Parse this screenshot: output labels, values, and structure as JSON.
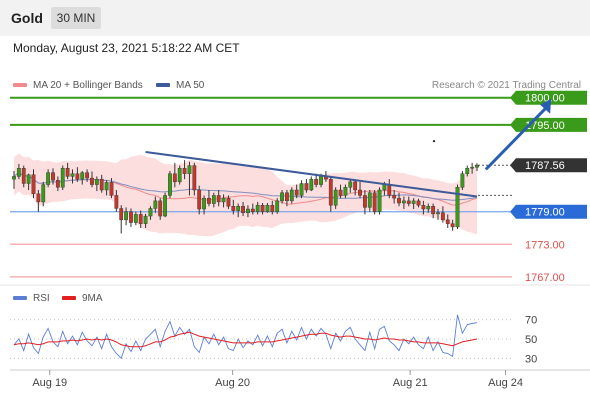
{
  "header": {
    "symbol": "Gold",
    "timeframe": "30 MIN",
    "datetime": "Monday, August 23, 2021 5:18:22 AM CET"
  },
  "legend": {
    "bollinger": {
      "label": "MA 20 + Bollinger Bands",
      "color": "#f28b8b"
    },
    "ma50": {
      "label": "MA 50",
      "color": "#3d5a99"
    },
    "rsi": {
      "label": "RSI",
      "color": "#5b7fd6"
    },
    "rsi_ma": {
      "label": "9MA",
      "color": "#e02020"
    }
  },
  "credit": "Research © 2021 Trading Central",
  "price_levels": [
    {
      "value": 1800.0,
      "label": "1800.00",
      "color": "#3a9a1a",
      "style": "resistance"
    },
    {
      "value": 1795.0,
      "label": "1795.00",
      "color": "#3a9a1a",
      "style": "resistance"
    },
    {
      "value": 1787.56,
      "label": "1787.56",
      "color": "#333333",
      "style": "current"
    },
    {
      "value": 1779.0,
      "label": "1779.00",
      "color": "#2a6bd8",
      "style": "pivot"
    },
    {
      "value": 1773.0,
      "label": "1773.00",
      "color": "#e05050",
      "style": "support"
    },
    {
      "value": 1767.0,
      "label": "1767.00",
      "color": "#e05050",
      "style": "support"
    }
  ],
  "chart_data": [
    {
      "type": "candlestick",
      "ylim": [
        1765.5,
        1800.5
      ],
      "x_ticks": [
        "Aug 19",
        "Aug 20",
        "Aug 21",
        "Aug 24"
      ],
      "candle_count": 96,
      "candles": [
        {
          "o": 1785.0,
          "h": 1786.5,
          "l": 1783.2,
          "c": 1785.5
        },
        {
          "o": 1785.5,
          "h": 1787.8,
          "l": 1785.0,
          "c": 1787.0
        },
        {
          "o": 1787.0,
          "h": 1787.5,
          "l": 1783.5,
          "c": 1784.2
        },
        {
          "o": 1784.2,
          "h": 1786.0,
          "l": 1783.0,
          "c": 1785.8
        },
        {
          "o": 1785.8,
          "h": 1786.8,
          "l": 1781.5,
          "c": 1782.3
        },
        {
          "o": 1782.3,
          "h": 1783.0,
          "l": 1779.0,
          "c": 1780.8
        },
        {
          "o": 1780.8,
          "h": 1784.5,
          "l": 1780.0,
          "c": 1784.0
        },
        {
          "o": 1784.0,
          "h": 1786.8,
          "l": 1783.5,
          "c": 1786.2
        },
        {
          "o": 1786.2,
          "h": 1787.0,
          "l": 1784.0,
          "c": 1784.8
        },
        {
          "o": 1784.8,
          "h": 1785.5,
          "l": 1782.8,
          "c": 1783.5
        },
        {
          "o": 1783.5,
          "h": 1787.5,
          "l": 1783.0,
          "c": 1787.0
        },
        {
          "o": 1787.0,
          "h": 1788.0,
          "l": 1785.0,
          "c": 1785.5
        },
        {
          "o": 1785.5,
          "h": 1786.8,
          "l": 1784.2,
          "c": 1786.0
        },
        {
          "o": 1786.0,
          "h": 1787.2,
          "l": 1784.5,
          "c": 1785.0
        },
        {
          "o": 1785.0,
          "h": 1786.5,
          "l": 1784.0,
          "c": 1786.2
        },
        {
          "o": 1786.2,
          "h": 1786.8,
          "l": 1784.5,
          "c": 1785.2
        },
        {
          "o": 1785.2,
          "h": 1786.4,
          "l": 1783.5,
          "c": 1784.0
        },
        {
          "o": 1784.0,
          "h": 1785.5,
          "l": 1782.8,
          "c": 1785.0
        },
        {
          "o": 1785.0,
          "h": 1785.8,
          "l": 1782.5,
          "c": 1783.0
        },
        {
          "o": 1783.0,
          "h": 1784.8,
          "l": 1782.0,
          "c": 1784.4
        },
        {
          "o": 1784.4,
          "h": 1785.2,
          "l": 1781.5,
          "c": 1782.0
        },
        {
          "o": 1782.0,
          "h": 1783.0,
          "l": 1779.0,
          "c": 1779.6
        },
        {
          "o": 1779.6,
          "h": 1780.2,
          "l": 1775.0,
          "c": 1777.5
        },
        {
          "o": 1777.5,
          "h": 1779.8,
          "l": 1776.5,
          "c": 1779.0
        },
        {
          "o": 1779.0,
          "h": 1779.6,
          "l": 1776.2,
          "c": 1777.0
        },
        {
          "o": 1777.0,
          "h": 1779.0,
          "l": 1776.5,
          "c": 1778.5
        },
        {
          "o": 1778.5,
          "h": 1779.2,
          "l": 1776.0,
          "c": 1776.8
        },
        {
          "o": 1776.8,
          "h": 1778.6,
          "l": 1776.0,
          "c": 1778.2
        },
        {
          "o": 1778.2,
          "h": 1780.0,
          "l": 1777.5,
          "c": 1779.6
        },
        {
          "o": 1779.6,
          "h": 1781.8,
          "l": 1778.8,
          "c": 1781.0
        },
        {
          "o": 1781.0,
          "h": 1781.5,
          "l": 1777.5,
          "c": 1778.2
        },
        {
          "o": 1778.2,
          "h": 1782.5,
          "l": 1778.0,
          "c": 1782.0
        },
        {
          "o": 1782.0,
          "h": 1786.5,
          "l": 1781.5,
          "c": 1786.0
        },
        {
          "o": 1786.0,
          "h": 1788.0,
          "l": 1783.5,
          "c": 1784.5
        },
        {
          "o": 1784.5,
          "h": 1787.5,
          "l": 1784.0,
          "c": 1787.0
        },
        {
          "o": 1787.0,
          "h": 1788.5,
          "l": 1785.0,
          "c": 1786.0
        },
        {
          "o": 1786.0,
          "h": 1788.2,
          "l": 1782.0,
          "c": 1787.5
        },
        {
          "o": 1787.5,
          "h": 1788.0,
          "l": 1782.0,
          "c": 1783.0
        },
        {
          "o": 1783.0,
          "h": 1783.8,
          "l": 1778.5,
          "c": 1779.5
        },
        {
          "o": 1779.5,
          "h": 1782.0,
          "l": 1778.5,
          "c": 1781.5
        },
        {
          "o": 1781.5,
          "h": 1783.0,
          "l": 1780.0,
          "c": 1780.5
        },
        {
          "o": 1780.5,
          "h": 1782.5,
          "l": 1779.8,
          "c": 1782.0
        },
        {
          "o": 1782.0,
          "h": 1783.0,
          "l": 1780.0,
          "c": 1780.8
        },
        {
          "o": 1780.8,
          "h": 1782.2,
          "l": 1779.8,
          "c": 1781.5
        },
        {
          "o": 1781.5,
          "h": 1782.0,
          "l": 1779.5,
          "c": 1780.0
        },
        {
          "o": 1780.0,
          "h": 1781.2,
          "l": 1778.5,
          "c": 1779.2
        },
        {
          "o": 1779.2,
          "h": 1780.5,
          "l": 1778.0,
          "c": 1780.0
        },
        {
          "o": 1780.0,
          "h": 1780.8,
          "l": 1778.2,
          "c": 1778.8
        },
        {
          "o": 1778.8,
          "h": 1780.2,
          "l": 1778.0,
          "c": 1779.5
        },
        {
          "o": 1779.5,
          "h": 1780.5,
          "l": 1778.5,
          "c": 1779.0
        },
        {
          "o": 1779.0,
          "h": 1780.8,
          "l": 1778.5,
          "c": 1780.2
        },
        {
          "o": 1780.2,
          "h": 1780.6,
          "l": 1778.5,
          "c": 1779.0
        },
        {
          "o": 1779.0,
          "h": 1780.6,
          "l": 1778.8,
          "c": 1780.2
        },
        {
          "o": 1780.2,
          "h": 1781.0,
          "l": 1778.5,
          "c": 1779.0
        },
        {
          "o": 1779.0,
          "h": 1781.5,
          "l": 1778.6,
          "c": 1781.0
        },
        {
          "o": 1781.0,
          "h": 1783.0,
          "l": 1780.5,
          "c": 1782.5
        },
        {
          "o": 1782.5,
          "h": 1783.0,
          "l": 1780.0,
          "c": 1781.0
        },
        {
          "o": 1781.0,
          "h": 1783.5,
          "l": 1780.5,
          "c": 1783.0
        },
        {
          "o": 1783.0,
          "h": 1784.0,
          "l": 1781.5,
          "c": 1782.0
        },
        {
          "o": 1782.0,
          "h": 1784.8,
          "l": 1781.5,
          "c": 1784.2
        },
        {
          "o": 1784.2,
          "h": 1785.0,
          "l": 1782.5,
          "c": 1783.0
        },
        {
          "o": 1783.0,
          "h": 1785.5,
          "l": 1782.8,
          "c": 1785.0
        },
        {
          "o": 1785.0,
          "h": 1786.0,
          "l": 1783.5,
          "c": 1784.0
        },
        {
          "o": 1784.0,
          "h": 1786.0,
          "l": 1783.5,
          "c": 1785.5
        },
        {
          "o": 1785.5,
          "h": 1786.5,
          "l": 1784.5,
          "c": 1785.0
        },
        {
          "o": 1785.0,
          "h": 1785.5,
          "l": 1779.0,
          "c": 1780.2
        },
        {
          "o": 1780.2,
          "h": 1783.5,
          "l": 1779.5,
          "c": 1783.0
        },
        {
          "o": 1783.0,
          "h": 1784.0,
          "l": 1781.5,
          "c": 1782.0
        },
        {
          "o": 1782.0,
          "h": 1784.0,
          "l": 1781.5,
          "c": 1783.5
        },
        {
          "o": 1783.5,
          "h": 1785.0,
          "l": 1782.5,
          "c": 1784.5
        },
        {
          "o": 1784.5,
          "h": 1785.0,
          "l": 1782.0,
          "c": 1783.0
        },
        {
          "o": 1783.0,
          "h": 1784.5,
          "l": 1781.5,
          "c": 1782.0
        },
        {
          "o": 1782.0,
          "h": 1783.0,
          "l": 1778.5,
          "c": 1779.8
        },
        {
          "o": 1779.8,
          "h": 1783.0,
          "l": 1779.0,
          "c": 1782.5
        },
        {
          "o": 1782.5,
          "h": 1783.0,
          "l": 1778.5,
          "c": 1779.0
        },
        {
          "o": 1779.0,
          "h": 1783.5,
          "l": 1778.5,
          "c": 1783.0
        },
        {
          "o": 1783.0,
          "h": 1784.5,
          "l": 1782.0,
          "c": 1784.0
        },
        {
          "o": 1784.0,
          "h": 1785.0,
          "l": 1781.5,
          "c": 1782.0
        },
        {
          "o": 1782.0,
          "h": 1783.0,
          "l": 1780.5,
          "c": 1781.5
        },
        {
          "o": 1781.5,
          "h": 1782.5,
          "l": 1780.0,
          "c": 1780.6
        },
        {
          "o": 1780.6,
          "h": 1781.8,
          "l": 1779.5,
          "c": 1781.0
        },
        {
          "o": 1781.0,
          "h": 1781.8,
          "l": 1780.0,
          "c": 1780.5
        },
        {
          "o": 1780.5,
          "h": 1781.5,
          "l": 1779.5,
          "c": 1781.0
        },
        {
          "o": 1781.0,
          "h": 1781.4,
          "l": 1779.8,
          "c": 1780.2
        },
        {
          "o": 1780.2,
          "h": 1781.0,
          "l": 1778.5,
          "c": 1779.5
        },
        {
          "o": 1779.5,
          "h": 1780.5,
          "l": 1778.8,
          "c": 1780.0
        },
        {
          "o": 1780.0,
          "h": 1780.5,
          "l": 1777.8,
          "c": 1778.6
        },
        {
          "o": 1778.6,
          "h": 1779.5,
          "l": 1777.5,
          "c": 1778.8
        },
        {
          "o": 1778.8,
          "h": 1780.0,
          "l": 1777.0,
          "c": 1777.5
        },
        {
          "o": 1777.5,
          "h": 1778.5,
          "l": 1776.0,
          "c": 1776.8
        },
        {
          "o": 1776.8,
          "h": 1777.5,
          "l": 1775.5,
          "c": 1776.2
        },
        {
          "o": 1776.2,
          "h": 1784.0,
          "l": 1775.8,
          "c": 1783.5
        },
        {
          "o": 1783.5,
          "h": 1786.5,
          "l": 1783.0,
          "c": 1786.0
        },
        {
          "o": 1786.0,
          "h": 1787.5,
          "l": 1785.5,
          "c": 1787.0
        },
        {
          "o": 1787.0,
          "h": 1788.0,
          "l": 1786.0,
          "c": 1787.2
        },
        {
          "o": 1787.2,
          "h": 1787.9,
          "l": 1786.5,
          "c": 1787.56
        }
      ],
      "overlays": {
        "trendline": {
          "from": [
            27,
            1790.0
          ],
          "to": [
            95,
            1781.8
          ],
          "color": "#3d5a99"
        },
        "forecast_arrow": {
          "from": [
            96,
            1786.8
          ],
          "to": [
            102,
            1799.8
          ],
          "color": "#2a5db0"
        }
      }
    },
    {
      "type": "line",
      "ylim": [
        20,
        80
      ],
      "y_ticks": [
        70,
        50,
        30
      ],
      "series": [
        {
          "name": "RSI",
          "values": [
            44,
            50,
            38,
            55,
            41,
            35,
            52,
            61,
            47,
            42,
            58,
            45,
            53,
            44,
            57,
            48,
            43,
            52,
            40,
            55,
            42,
            35,
            30,
            45,
            37,
            48,
            38,
            50,
            55,
            60,
            42,
            58,
            68,
            53,
            62,
            55,
            60,
            42,
            36,
            52,
            45,
            55,
            44,
            52,
            40,
            38,
            50,
            41,
            48,
            44,
            54,
            43,
            53,
            42,
            56,
            60,
            46,
            58,
            49,
            62,
            50,
            60,
            53,
            61,
            55,
            40,
            56,
            48,
            58,
            62,
            50,
            44,
            38,
            57,
            40,
            60,
            63,
            48,
            44,
            38,
            50,
            45,
            52,
            44,
            40,
            52,
            38,
            47,
            36,
            35,
            32,
            75,
            56,
            65,
            66,
            67
          ]
        },
        {
          "name": "9MA",
          "values": [
            44,
            45,
            45,
            46,
            45,
            44,
            45,
            47,
            47,
            47,
            48,
            48,
            49,
            48,
            49,
            50,
            49,
            50,
            49,
            50,
            49,
            47,
            44,
            43,
            42,
            42,
            42,
            43,
            45,
            47,
            47,
            49,
            52,
            53,
            55,
            56,
            57,
            55,
            53,
            52,
            51,
            50,
            49,
            48,
            47,
            46,
            46,
            46,
            46,
            46,
            47,
            47,
            47,
            47,
            48,
            49,
            50,
            51,
            52,
            53,
            54,
            55,
            55,
            56,
            56,
            54,
            53,
            52,
            53,
            53,
            52,
            51,
            50,
            50,
            49,
            50,
            51,
            50,
            50,
            49,
            49,
            48,
            47,
            47,
            46,
            46,
            46,
            46,
            45,
            44,
            43,
            45,
            47,
            48,
            49,
            50
          ]
        }
      ]
    }
  ]
}
